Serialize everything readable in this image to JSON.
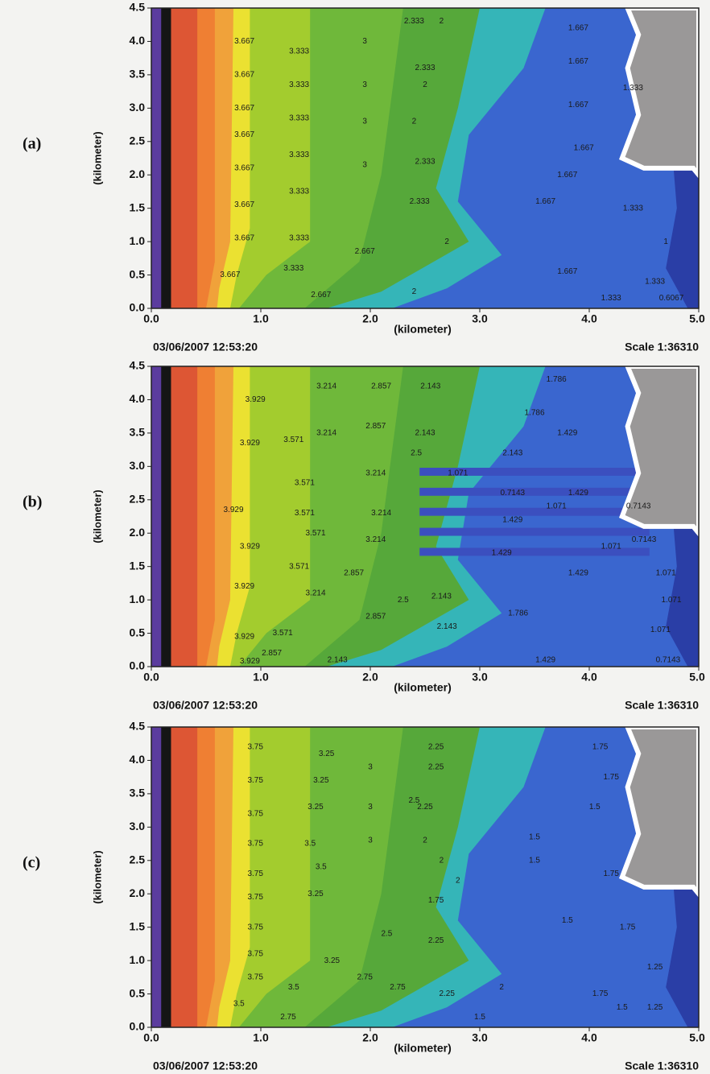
{
  "chart_data": [
    {
      "type": "contour",
      "panel_label": "(a)",
      "xlabel": "(kilometer)",
      "ylabel": "(kilometer)",
      "timestamp": "03/06/2007 12:53:20",
      "scale": "Scale 1:36310",
      "xlim": [
        0,
        5
      ],
      "ylim": [
        0,
        4.5
      ],
      "xticks": [
        {
          "value": 0,
          "label": "0.0"
        },
        {
          "value": 1,
          "label": "1.0"
        },
        {
          "value": 2,
          "label": "2.0"
        },
        {
          "value": 3,
          "label": "3.0"
        },
        {
          "value": 4,
          "label": "4.0"
        },
        {
          "value": 5,
          "label": "5.0"
        }
      ],
      "yticks": [
        {
          "value": 0,
          "label": "0.0"
        },
        0.5,
        {
          "value": 1,
          "label": "1.0"
        },
        1.5,
        {
          "value": 2,
          "label": "2.0"
        },
        2.5,
        {
          "value": 3,
          "label": "3.0"
        },
        3.5,
        {
          "value": 4,
          "label": "4.0"
        },
        4.5
      ],
      "contour_labels": [
        3.667,
        3.667,
        3.667,
        3.667,
        3.667,
        3.667,
        3.667,
        3.667,
        3.333,
        3.333,
        3.333,
        3.333,
        3.333,
        3.333,
        3.333,
        3,
        3,
        3,
        3,
        2.667,
        2.667,
        2.333,
        2.333,
        2.333,
        2.333,
        2,
        2,
        2,
        2,
        2,
        1.667,
        1.667,
        1.667,
        1.667,
        1.667,
        1.667,
        1.667,
        1.333,
        1.333,
        1.333,
        1.333,
        1,
        0.6067
      ]
    },
    {
      "type": "contour",
      "panel_label": "(b)",
      "xlabel": "(kilometer)",
      "ylabel": "(kilometer)",
      "timestamp": "03/06/2007 12:53:20",
      "scale": "Scale 1:36310",
      "xlim": [
        0,
        5
      ],
      "ylim": [
        0,
        4.5
      ],
      "xticks": [
        {
          "value": 0,
          "label": "0.0"
        },
        {
          "value": 1,
          "label": "1.0"
        },
        {
          "value": 2,
          "label": "2.0"
        },
        {
          "value": 3,
          "label": "3.0"
        },
        {
          "value": 4,
          "label": "4.0"
        },
        {
          "value": 5,
          "label": "5.0"
        }
      ],
      "yticks": [
        {
          "value": 0,
          "label": "0.0"
        },
        0.5,
        {
          "value": 1,
          "label": "1.0"
        },
        1.5,
        {
          "value": 2,
          "label": "2.0"
        },
        2.5,
        {
          "value": 3,
          "label": "3.0"
        },
        3.5,
        {
          "value": 4,
          "label": "4.0"
        },
        4.5
      ],
      "contour_labels": [
        3.929,
        3.929,
        3.929,
        3.929,
        3.929,
        3.929,
        3.929,
        3.571,
        3.571,
        3.571,
        3.571,
        3.571,
        3.571,
        3.214,
        3.214,
        3.214,
        3.214,
        3.214,
        3.214,
        2.857,
        2.857,
        2.857,
        2.857,
        2.857,
        2.5,
        2.5,
        2.143,
        2.143,
        2.143,
        2.143,
        2.143,
        2.143,
        1.786,
        1.786,
        1.786,
        1.429,
        1.429,
        1.429,
        1.429,
        1.429,
        1.429,
        1.071,
        1.071,
        1.071,
        1.071,
        1.071,
        1.071,
        0.7143,
        0.7143,
        0.7143,
        0.7143
      ]
    },
    {
      "type": "contour",
      "panel_label": "(c)",
      "xlabel": "(kilometer)",
      "ylabel": "(kilometer)",
      "timestamp": "03/06/2007 12:53:20",
      "scale": "Scale 1:36310",
      "xlim": [
        0,
        5
      ],
      "ylim": [
        0,
        4.5
      ],
      "xticks": [
        {
          "value": 0,
          "label": "0.0"
        },
        {
          "value": 1,
          "label": "1.0"
        },
        {
          "value": 2,
          "label": "2.0"
        },
        {
          "value": 3,
          "label": "3.0"
        },
        {
          "value": 4,
          "label": "4.0"
        },
        {
          "value": 5,
          "label": "5.0"
        }
      ],
      "yticks": [
        {
          "value": 0,
          "label": "0.0"
        },
        0.5,
        {
          "value": 1,
          "label": "1.0"
        },
        1.5,
        {
          "value": 2,
          "label": "2.0"
        },
        2.5,
        {
          "value": 3,
          "label": "3.0"
        },
        3.5,
        {
          "value": 4,
          "label": "4.0"
        },
        4.5
      ],
      "contour_labels": [
        3.75,
        3.75,
        3.75,
        3.75,
        3.75,
        3.75,
        3.75,
        3.75,
        3.75,
        3.5,
        3.5,
        3.5,
        3.5,
        3.25,
        3.25,
        3.25,
        3.25,
        3.25,
        3,
        3,
        3,
        2.75,
        2.75,
        2.75,
        2.5,
        2.5,
        2.25,
        2.25,
        2.25,
        2.25,
        2.25,
        2,
        2,
        2,
        2,
        1.75,
        1.75,
        1.75,
        1.75,
        1.75,
        1.75,
        1.5,
        1.5,
        1.5,
        1.5,
        1.5,
        1.5,
        1.25,
        1.25
      ]
    }
  ]
}
